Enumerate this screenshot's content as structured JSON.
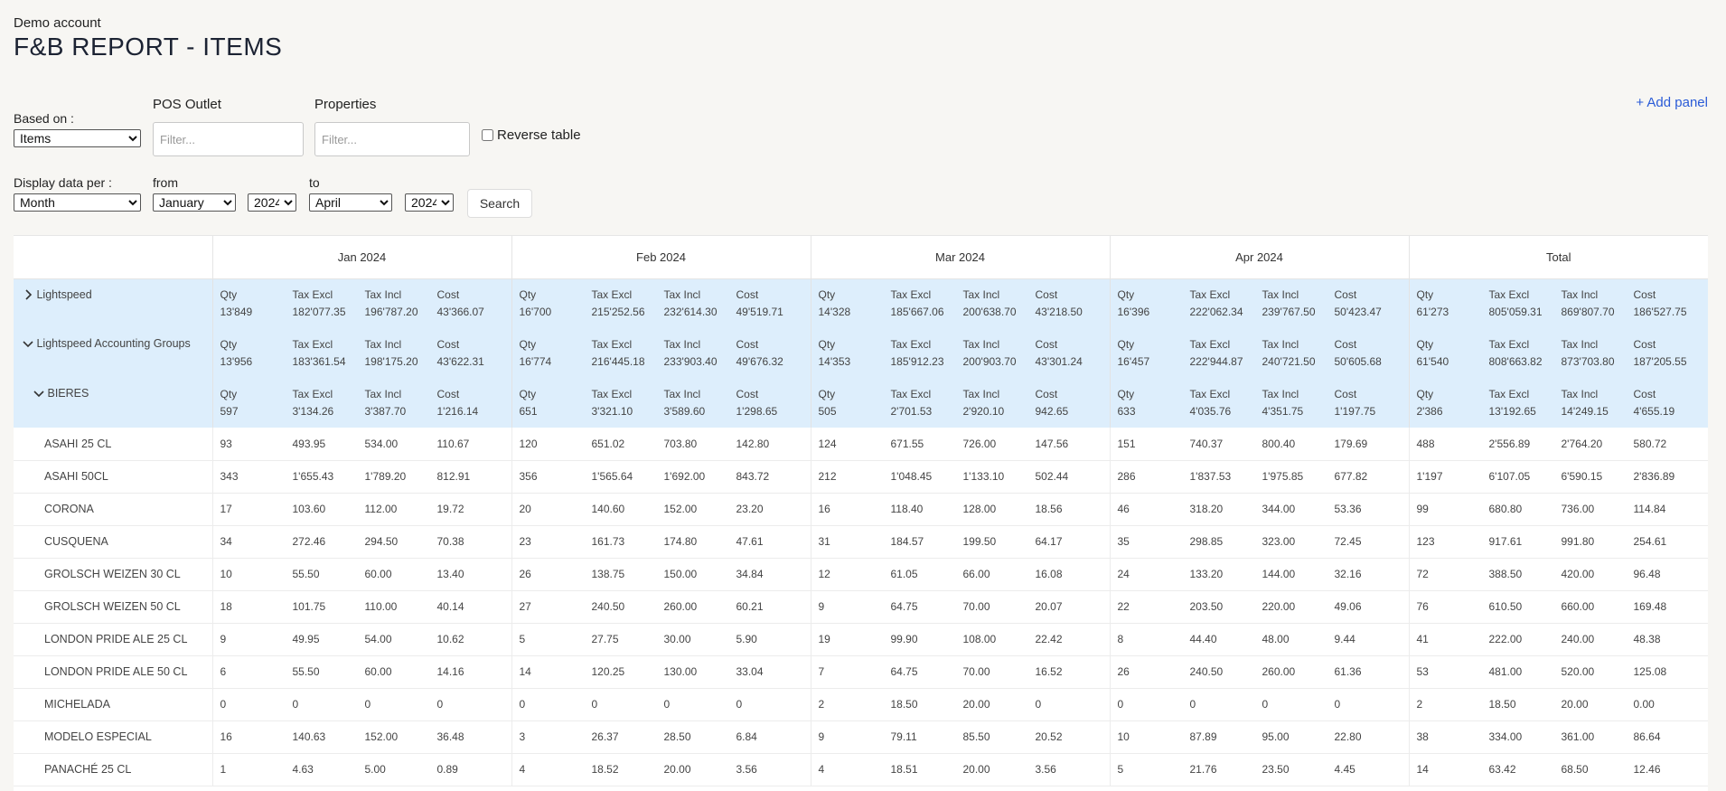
{
  "header": {
    "account": "Demo account",
    "title": "F&B REPORT - ITEMS",
    "add_panel": "+ Add panel"
  },
  "filters": {
    "based_on_label": "Based on :",
    "based_on_value": "Items",
    "pos_outlet_label": "POS Outlet",
    "pos_outlet_placeholder": "Filter...",
    "properties_label": "Properties",
    "properties_placeholder": "Filter...",
    "reverse_label": "Reverse table",
    "display_label": "Display data per :",
    "display_value": "Month",
    "from_label": "from",
    "from_month": "January",
    "from_year": "2024",
    "to_label": "to",
    "to_month": "April",
    "to_year": "2024",
    "search_label": "Search"
  },
  "table": {
    "periods": [
      "Jan 2024",
      "Feb 2024",
      "Mar 2024",
      "Apr 2024",
      "Total"
    ],
    "metrics": [
      "Qty",
      "Tax Excl",
      "Tax Incl",
      "Cost"
    ],
    "groups": [
      {
        "label": "Lightspeed",
        "chevron": "chevron-right-icon",
        "indent": 0,
        "values": [
          [
            "13'849",
            "182'077.35",
            "196'787.20",
            "43'366.07"
          ],
          [
            "16'700",
            "215'252.56",
            "232'614.30",
            "49'519.71"
          ],
          [
            "14'328",
            "185'667.06",
            "200'638.70",
            "43'218.50"
          ],
          [
            "16'396",
            "222'062.34",
            "239'767.50",
            "50'423.47"
          ],
          [
            "61'273",
            "805'059.31",
            "869'807.70",
            "186'527.75"
          ]
        ]
      },
      {
        "label": "Lightspeed Accounting Groups",
        "chevron": "chevron-down-icon",
        "indent": 0,
        "values": [
          [
            "13'956",
            "183'361.54",
            "198'175.20",
            "43'622.31"
          ],
          [
            "16'774",
            "216'445.18",
            "233'903.40",
            "49'676.32"
          ],
          [
            "14'353",
            "185'912.23",
            "200'903.70",
            "43'301.24"
          ],
          [
            "16'457",
            "222'944.87",
            "240'721.50",
            "50'605.68"
          ],
          [
            "61'540",
            "808'663.82",
            "873'703.80",
            "187'205.55"
          ]
        ]
      },
      {
        "label": "BIERES",
        "chevron": "chevron-down-icon",
        "indent": 1,
        "values": [
          [
            "597",
            "3'134.26",
            "3'387.70",
            "1'216.14"
          ],
          [
            "651",
            "3'321.10",
            "3'589.60",
            "1'298.65"
          ],
          [
            "505",
            "2'701.53",
            "2'920.10",
            "942.65"
          ],
          [
            "633",
            "4'035.76",
            "4'351.75",
            "1'197.75"
          ],
          [
            "2'386",
            "13'192.65",
            "14'249.15",
            "4'655.19"
          ]
        ]
      }
    ],
    "items": [
      {
        "label": "ASAHI 25 CL",
        "values": [
          [
            "93",
            "493.95",
            "534.00",
            "110.67"
          ],
          [
            "120",
            "651.02",
            "703.80",
            "142.80"
          ],
          [
            "124",
            "671.55",
            "726.00",
            "147.56"
          ],
          [
            "151",
            "740.37",
            "800.40",
            "179.69"
          ],
          [
            "488",
            "2'556.89",
            "2'764.20",
            "580.72"
          ]
        ]
      },
      {
        "label": "ASAHI 50CL",
        "values": [
          [
            "343",
            "1'655.43",
            "1'789.20",
            "812.91"
          ],
          [
            "356",
            "1'565.64",
            "1'692.00",
            "843.72"
          ],
          [
            "212",
            "1'048.45",
            "1'133.10",
            "502.44"
          ],
          [
            "286",
            "1'837.53",
            "1'975.85",
            "677.82"
          ],
          [
            "1'197",
            "6'107.05",
            "6'590.15",
            "2'836.89"
          ]
        ]
      },
      {
        "label": "CORONA",
        "values": [
          [
            "17",
            "103.60",
            "112.00",
            "19.72"
          ],
          [
            "20",
            "140.60",
            "152.00",
            "23.20"
          ],
          [
            "16",
            "118.40",
            "128.00",
            "18.56"
          ],
          [
            "46",
            "318.20",
            "344.00",
            "53.36"
          ],
          [
            "99",
            "680.80",
            "736.00",
            "114.84"
          ]
        ]
      },
      {
        "label": "CUSQUENA",
        "values": [
          [
            "34",
            "272.46",
            "294.50",
            "70.38"
          ],
          [
            "23",
            "161.73",
            "174.80",
            "47.61"
          ],
          [
            "31",
            "184.57",
            "199.50",
            "64.17"
          ],
          [
            "35",
            "298.85",
            "323.00",
            "72.45"
          ],
          [
            "123",
            "917.61",
            "991.80",
            "254.61"
          ]
        ]
      },
      {
        "label": "GROLSCH WEIZEN 30 CL",
        "values": [
          [
            "10",
            "55.50",
            "60.00",
            "13.40"
          ],
          [
            "26",
            "138.75",
            "150.00",
            "34.84"
          ],
          [
            "12",
            "61.05",
            "66.00",
            "16.08"
          ],
          [
            "24",
            "133.20",
            "144.00",
            "32.16"
          ],
          [
            "72",
            "388.50",
            "420.00",
            "96.48"
          ]
        ]
      },
      {
        "label": "GROLSCH WEIZEN 50 CL",
        "values": [
          [
            "18",
            "101.75",
            "110.00",
            "40.14"
          ],
          [
            "27",
            "240.50",
            "260.00",
            "60.21"
          ],
          [
            "9",
            "64.75",
            "70.00",
            "20.07"
          ],
          [
            "22",
            "203.50",
            "220.00",
            "49.06"
          ],
          [
            "76",
            "610.50",
            "660.00",
            "169.48"
          ]
        ]
      },
      {
        "label": "LONDON PRIDE ALE 25 CL",
        "values": [
          [
            "9",
            "49.95",
            "54.00",
            "10.62"
          ],
          [
            "5",
            "27.75",
            "30.00",
            "5.90"
          ],
          [
            "19",
            "99.90",
            "108.00",
            "22.42"
          ],
          [
            "8",
            "44.40",
            "48.00",
            "9.44"
          ],
          [
            "41",
            "222.00",
            "240.00",
            "48.38"
          ]
        ]
      },
      {
        "label": "LONDON PRIDE ALE 50 CL",
        "values": [
          [
            "6",
            "55.50",
            "60.00",
            "14.16"
          ],
          [
            "14",
            "120.25",
            "130.00",
            "33.04"
          ],
          [
            "7",
            "64.75",
            "70.00",
            "16.52"
          ],
          [
            "26",
            "240.50",
            "260.00",
            "61.36"
          ],
          [
            "53",
            "481.00",
            "520.00",
            "125.08"
          ]
        ]
      },
      {
        "label": "MICHELADA",
        "values": [
          [
            "0",
            "0",
            "0",
            "0"
          ],
          [
            "0",
            "0",
            "0",
            "0"
          ],
          [
            "2",
            "18.50",
            "20.00",
            "0"
          ],
          [
            "0",
            "0",
            "0",
            "0"
          ],
          [
            "2",
            "18.50",
            "20.00",
            "0.00"
          ]
        ]
      },
      {
        "label": "MODELO ESPECIAL",
        "values": [
          [
            "16",
            "140.63",
            "152.00",
            "36.48"
          ],
          [
            "3",
            "26.37",
            "28.50",
            "6.84"
          ],
          [
            "9",
            "79.11",
            "85.50",
            "20.52"
          ],
          [
            "10",
            "87.89",
            "95.00",
            "22.80"
          ],
          [
            "38",
            "334.00",
            "361.00",
            "86.64"
          ]
        ]
      },
      {
        "label": "PANACHÉ 25 CL",
        "values": [
          [
            "1",
            "4.63",
            "5.00",
            "0.89"
          ],
          [
            "4",
            "18.52",
            "20.00",
            "3.56"
          ],
          [
            "4",
            "18.51",
            "20.00",
            "3.56"
          ],
          [
            "5",
            "21.76",
            "23.50",
            "4.45"
          ],
          [
            "14",
            "63.42",
            "68.50",
            "12.46"
          ]
        ]
      }
    ]
  }
}
